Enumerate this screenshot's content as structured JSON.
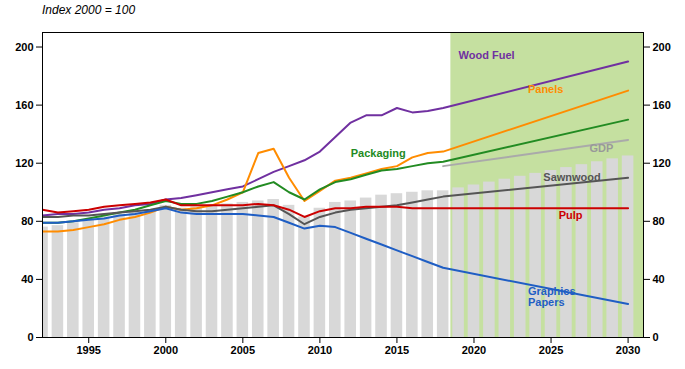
{
  "chart_data": {
    "type": "line",
    "title": "Index 2000 = 100",
    "xlim": [
      1992,
      2031
    ],
    "xticks": [
      1995,
      2000,
      2005,
      2010,
      2015,
      2020,
      2025,
      2030
    ],
    "ylim": [
      0,
      210
    ],
    "yticks": [
      0,
      40,
      80,
      120,
      160,
      200
    ],
    "shaded": {
      "from": 2018.5,
      "color": "#c5e0a0"
    },
    "series": [
      {
        "type": "bar",
        "color": "#d8d8d8",
        "x": [
          1992,
          1993,
          1994,
          1995,
          1996,
          1997,
          1998,
          1999,
          2000,
          2001,
          2002,
          2003,
          2004,
          2005,
          2006,
          2007,
          2008,
          2009,
          2010,
          2011,
          2012,
          2013,
          2014,
          2015,
          2016,
          2017,
          2018,
          2019,
          2020,
          2021,
          2022,
          2023,
          2024,
          2025,
          2026,
          2027,
          2028,
          2029,
          2030
        ],
        "values": [
          76,
          77,
          79,
          81,
          83,
          85,
          86,
          88,
          91,
          89,
          90,
          91,
          92,
          93,
          94,
          95,
          91,
          83,
          89,
          93,
          94,
          96,
          98,
          99,
          100,
          101,
          101,
          103,
          105,
          107,
          109,
          111,
          113,
          115,
          117,
          119,
          121,
          123,
          125
        ]
      },
      {
        "type": "line",
        "color": "#7030a0",
        "x": [
          1992,
          1993,
          1994,
          1995,
          1996,
          1997,
          1998,
          1999,
          2000,
          2001,
          2002,
          2003,
          2004,
          2005,
          2006,
          2007,
          2008,
          2009,
          2010,
          2011,
          2012,
          2013,
          2014,
          2015,
          2016,
          2017,
          2018,
          2030
        ],
        "values": [
          84,
          85,
          85,
          86,
          88,
          89,
          91,
          92,
          95,
          96,
          98,
          100,
          102,
          104,
          109,
          114,
          118,
          122,
          128,
          138,
          148,
          153,
          153,
          158,
          155,
          156,
          158,
          190
        ]
      },
      {
        "type": "line",
        "color": "#ff8c00",
        "x": [
          1992,
          1993,
          1994,
          1995,
          1996,
          1997,
          1998,
          1999,
          2000,
          2001,
          2002,
          2003,
          2004,
          2005,
          2006,
          2007,
          2008,
          2009,
          2010,
          2011,
          2012,
          2013,
          2014,
          2015,
          2016,
          2017,
          2018,
          2030
        ],
        "values": [
          73,
          73,
          74,
          76,
          78,
          81,
          83,
          86,
          90,
          88,
          89,
          91,
          95,
          100,
          127,
          130,
          110,
          94,
          101,
          108,
          110,
          113,
          116,
          118,
          124,
          127,
          128,
          170
        ]
      },
      {
        "type": "line",
        "color": "#228b22",
        "x": [
          1992,
          1993,
          1994,
          1995,
          1996,
          1997,
          1998,
          1999,
          2000,
          2001,
          2002,
          2003,
          2004,
          2005,
          2006,
          2007,
          2008,
          2009,
          2010,
          2011,
          2012,
          2013,
          2014,
          2015,
          2016,
          2017,
          2018,
          2030
        ],
        "values": [
          79,
          79,
          80,
          82,
          84,
          86,
          88,
          91,
          94,
          92,
          92,
          94,
          97,
          100,
          104,
          107,
          100,
          95,
          102,
          107,
          109,
          112,
          115,
          116,
          118,
          120,
          121,
          150
        ]
      },
      {
        "type": "line",
        "color": "#aaaaaa",
        "x": [
          2018,
          2030
        ],
        "values": [
          118,
          136
        ]
      },
      {
        "type": "line",
        "color": "#555555",
        "x": [
          1992,
          1993,
          1994,
          1995,
          1996,
          1997,
          1998,
          1999,
          2000,
          2001,
          2002,
          2003,
          2004,
          2005,
          2006,
          2007,
          2008,
          2009,
          2010,
          2011,
          2012,
          2013,
          2014,
          2015,
          2016,
          2017,
          2018,
          2030
        ],
        "values": [
          83,
          83,
          84,
          84,
          85,
          86,
          87,
          88,
          90,
          88,
          87,
          87,
          88,
          89,
          90,
          91,
          85,
          78,
          83,
          86,
          88,
          89,
          90,
          91,
          93,
          95,
          97,
          110
        ]
      },
      {
        "type": "line",
        "color": "#cc0000",
        "x": [
          1992,
          1993,
          1994,
          1995,
          1996,
          1997,
          1998,
          1999,
          2000,
          2001,
          2002,
          2003,
          2004,
          2005,
          2006,
          2007,
          2008,
          2009,
          2010,
          2011,
          2012,
          2013,
          2014,
          2015,
          2016,
          2017,
          2018,
          2030
        ],
        "values": [
          88,
          86,
          87,
          88,
          90,
          91,
          92,
          93,
          95,
          91,
          91,
          91,
          91,
          91,
          92,
          91,
          88,
          83,
          87,
          89,
          89,
          90,
          90,
          90,
          89,
          89,
          89,
          89
        ]
      },
      {
        "type": "line",
        "color": "#1f5ec4",
        "x": [
          1992,
          1993,
          1994,
          1995,
          1996,
          1997,
          1998,
          1999,
          2000,
          2001,
          2002,
          2003,
          2004,
          2005,
          2006,
          2007,
          2008,
          2009,
          2010,
          2011,
          2012,
          2013,
          2014,
          2015,
          2016,
          2017,
          2018,
          2030
        ],
        "values": [
          79,
          79,
          80,
          81,
          82,
          84,
          85,
          87,
          89,
          86,
          85,
          85,
          85,
          85,
          84,
          83,
          79,
          75,
          77,
          76,
          72,
          68,
          64,
          60,
          56,
          52,
          48,
          23
        ]
      }
    ],
    "annotations": [
      {
        "text": "Wood Fuel",
        "x": 2019.0,
        "y": 197,
        "color": "#7030a0",
        "anchor": "top"
      },
      {
        "text": "Panels",
        "x": 2023.5,
        "y": 174,
        "color": "#ff8c00",
        "anchor": "top"
      },
      {
        "text": "Packaging",
        "x": 2012.0,
        "y": 124,
        "color": "#228b22",
        "anchor": "bottom"
      },
      {
        "text": "GDP",
        "x": 2027.5,
        "y": 133,
        "color": "#999999",
        "anchor": "top"
      },
      {
        "text": "Sawnwood",
        "x": 2024.5,
        "y": 113,
        "color": "#555555",
        "anchor": "top"
      },
      {
        "text": "Pulp",
        "x": 2025.5,
        "y": 84,
        "color": "#cc0000",
        "anchor": "middle"
      },
      {
        "text": "Graphics\nPapers",
        "x": 2023.5,
        "y": 28,
        "color": "#1f5ec4",
        "anchor": "middle"
      }
    ]
  }
}
